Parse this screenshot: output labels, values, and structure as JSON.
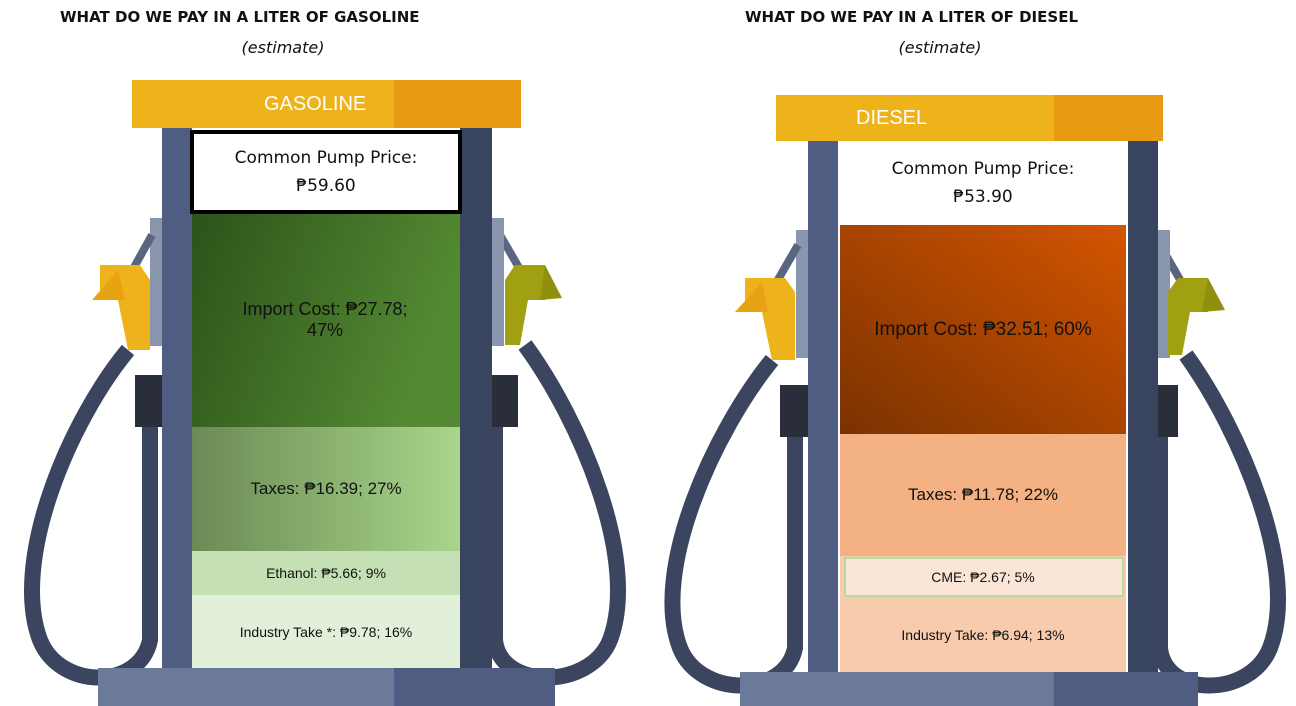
{
  "panels": [
    {
      "title": "WHAT DO WE PAY IN A LITER OF GASOLINE",
      "subtitle": "(estimate)",
      "sign": "GASOLINE",
      "price_label": "Common Pump Price:",
      "price": "₱59.60",
      "segments": [
        "Import Cost: ₱27.78; 47%",
        "Taxes: ₱16.39; 27%",
        "Ethanol: ₱5.66; 9%",
        "Industry Take *: ₱9.78; 16%"
      ]
    },
    {
      "title": "WHAT DO WE PAY IN A LITER OF DIESEL",
      "subtitle": "(estimate)",
      "sign": "DIESEL",
      "price_label": "Common Pump Price:",
      "price": "₱53.90",
      "segments": [
        "Import Cost: ₱32.51; 60%",
        "Taxes: ₱11.78; 22%",
        "CME: ₱2.67; 5%",
        "Industry Take: ₱6.94; 13%"
      ]
    }
  ]
}
